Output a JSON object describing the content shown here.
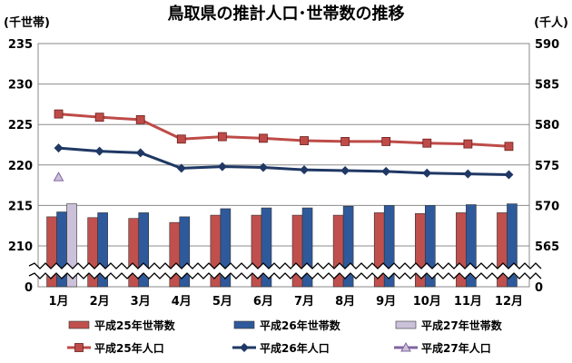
{
  "chart_data": {
    "type": "bar",
    "title": "鳥取県の推計人口･世帯数の推移",
    "left_axis_unit": "(千世帯)",
    "right_axis_unit": "(千人)",
    "categories": [
      "1月",
      "2月",
      "3月",
      "4月",
      "5月",
      "6月",
      "7月",
      "8月",
      "9月",
      "10月",
      "11月",
      "12月"
    ],
    "left_axis": {
      "ticks": [
        235,
        230,
        225,
        220,
        215,
        210,
        0
      ],
      "ylim": [
        208,
        235
      ],
      "break": true
    },
    "right_axis": {
      "ticks": [
        590,
        585,
        580,
        575,
        570,
        565,
        0
      ],
      "ylim": [
        563,
        590
      ],
      "break": true
    },
    "series": [
      {
        "name": "平成25年世帯数",
        "type": "bar",
        "axis": "left",
        "color": "#c0504d",
        "values": [
          213.6,
          213.5,
          213.4,
          212.9,
          213.8,
          213.8,
          213.8,
          213.8,
          214.1,
          214.0,
          214.1,
          214.1
        ]
      },
      {
        "name": "平成26年世帯数",
        "type": "bar",
        "axis": "left",
        "color": "#2e5a9c",
        "values": [
          214.2,
          214.1,
          214.1,
          213.6,
          214.6,
          214.7,
          214.7,
          214.9,
          215.0,
          215.0,
          215.1,
          215.2
        ]
      },
      {
        "name": "平成27年世帯数",
        "type": "bar",
        "axis": "left",
        "color": "#ccc1da",
        "values": [
          215.2,
          null,
          null,
          null,
          null,
          null,
          null,
          null,
          null,
          null,
          null,
          null
        ]
      },
      {
        "name": "平成25年人口",
        "type": "line",
        "axis": "right",
        "color": "#be4b48",
        "marker": "square",
        "values": [
          581.3,
          580.9,
          580.6,
          578.2,
          578.5,
          578.3,
          578.0,
          577.9,
          577.9,
          577.7,
          577.6,
          577.3
        ]
      },
      {
        "name": "平成26年人口",
        "type": "line",
        "axis": "right",
        "color": "#1f3864",
        "marker": "diamond",
        "values": [
          577.1,
          576.7,
          576.5,
          574.6,
          574.8,
          574.7,
          574.4,
          574.3,
          574.2,
          574.0,
          573.9,
          573.8
        ]
      },
      {
        "name": "平成27年人口",
        "type": "line",
        "axis": "right",
        "color": "#8064a2",
        "marker": "triangle",
        "values": [
          573.5,
          null,
          null,
          null,
          null,
          null,
          null,
          null,
          null,
          null,
          null,
          null
        ]
      }
    ],
    "grid": true,
    "legend_position": "bottom"
  }
}
